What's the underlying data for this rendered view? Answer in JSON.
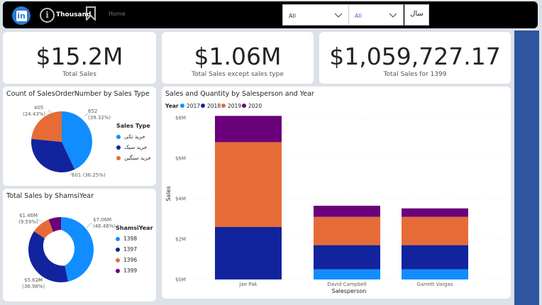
{
  "topbar": {
    "info_icon": "i",
    "thousand_label": "Thousand",
    "home_label": "Home",
    "slicer1_value": "All",
    "slicer2_value": "All",
    "year_label": "سال"
  },
  "kpis": [
    {
      "value": "$15.2M",
      "label": "Total Sales"
    },
    {
      "value": "$1.06M",
      "label": "Total Sales except sales type"
    },
    {
      "value": "$1,059,727.17",
      "label": "Total Sales for 1399"
    }
  ],
  "pie": {
    "title": "Count of SalesOrderNumber by Sales Type",
    "legend_title": "Sales Type",
    "legend": [
      "خرید تکی",
      "خرید سبک",
      "خرید سنگین"
    ],
    "labels": {
      "a1": "652",
      "a2": "(39.32%)",
      "b": "601 (36.25%)",
      "c1": "405",
      "c2": "(24.43%)"
    }
  },
  "donut": {
    "title": "Total Sales by ShamsiYear",
    "legend_title": "ShamsiYear",
    "legend": [
      "1398",
      "1397",
      "1396",
      "1399"
    ],
    "labels": {
      "a1": "$7.06M",
      "a2": "(46.46%)",
      "b1": "$5.62M",
      "b2": "(36.98%)",
      "c1": "$1.46M",
      "c2": "(9.59%)"
    }
  },
  "colors": {
    "light_blue": "#118dff",
    "dark_blue": "#12239e",
    "orange": "#e66c37",
    "purple": "#6b007b"
  },
  "chart_data": {
    "type": "bar",
    "title": "Sales and Quantity by Salesperson and Year",
    "legend_title": "Year",
    "xlabel": "Salesperson",
    "ylabel": "Sales",
    "categories": [
      "Jae Pak",
      "David Campbell",
      "Garrett Vargas"
    ],
    "yticks": [
      "$0M",
      "$2M",
      "$4M",
      "$6M",
      "$8M"
    ],
    "ylim": [
      0,
      8.5
    ],
    "series": [
      {
        "name": "2017",
        "values": [
          0,
          0.5,
          0.5
        ]
      },
      {
        "name": "2018",
        "values": [
          2.6,
          1.2,
          1.2
        ]
      },
      {
        "name": "2019",
        "values": [
          4.2,
          1.4,
          1.4
        ]
      },
      {
        "name": "2020",
        "values": [
          1.3,
          0.55,
          0.42
        ]
      }
    ]
  }
}
